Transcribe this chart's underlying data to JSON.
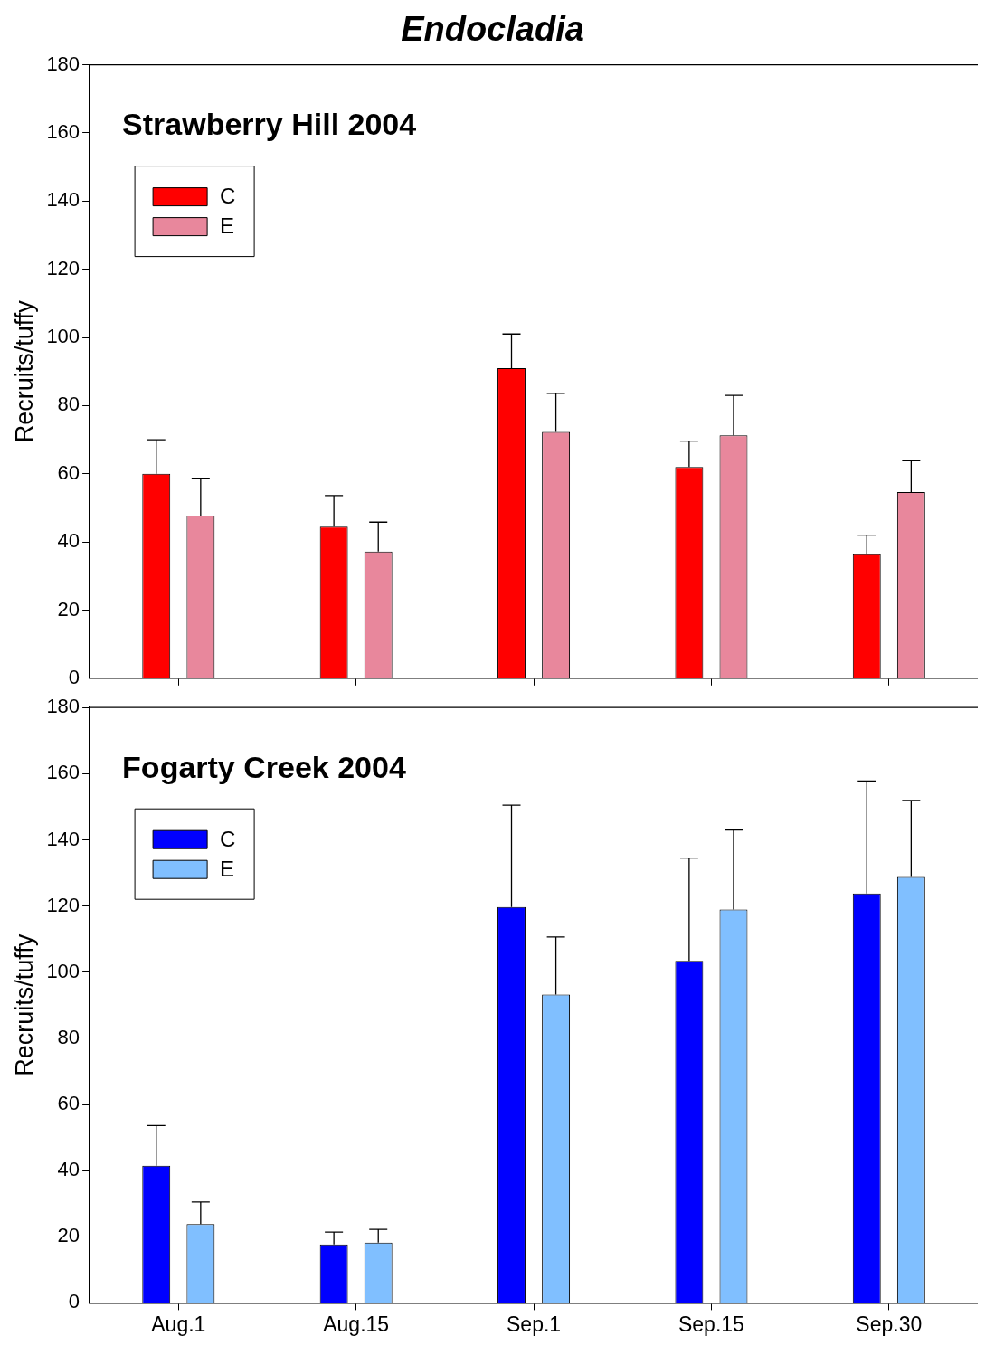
{
  "chart_data": [
    {
      "type": "bar",
      "title": "Endocladia",
      "subtitle": "Strawberry Hill 2004",
      "ylabel": "Recruits/tuffy",
      "categories": [
        null,
        null,
        null,
        null,
        null
      ],
      "tick_labels": "y",
      "ylim": [
        0,
        180
      ],
      "yticks": [
        0,
        20,
        40,
        60,
        80,
        100,
        120,
        140,
        160,
        180
      ],
      "grid": false,
      "legend": "top left",
      "series": [
        {
          "name": "C",
          "color": "#ff0000",
          "values": [
            60,
            44.5,
            91,
            62,
            36.4
          ],
          "errors": [
            [
              60,
              70
            ],
            [
              44.5,
              53.6
            ],
            [
              91,
              101
            ],
            [
              62,
              69.6
            ],
            [
              36.4,
              42
            ]
          ]
        },
        {
          "name": "E",
          "color": "#e8879c",
          "values": [
            47.7,
            37.2,
            72.3,
            71.3,
            54.6
          ],
          "errors": [
            [
              47.7,
              58.7
            ],
            [
              37.2,
              45.8
            ],
            [
              72.3,
              83.6
            ],
            [
              71.3,
              83
            ],
            [
              54.6,
              63.8
            ]
          ]
        }
      ]
    },
    {
      "type": "bar",
      "subtitle": "Fogarty Creek 2004",
      "ylabel": "Recruits/tuffy",
      "categories": [
        "Aug.1",
        "Aug.15",
        "Sep.1",
        "Sep.15",
        "Sep.30"
      ],
      "ylim": [
        0,
        180
      ],
      "yticks": [
        0,
        20,
        40,
        60,
        80,
        100,
        120,
        140,
        160,
        180
      ],
      "grid": false,
      "legend": "top left",
      "series": [
        {
          "name": "C",
          "color": "#0000ff",
          "values": [
            41.5,
            17.7,
            119.7,
            103.4,
            123.8
          ],
          "errors": [
            [
              41.5,
              53.6
            ],
            [
              17.7,
              21.4
            ],
            [
              119.7,
              150.5
            ],
            [
              103.4,
              134.5
            ],
            [
              123.8,
              157.8
            ]
          ]
        },
        {
          "name": "E",
          "color": "#80bfff",
          "values": [
            23.8,
            18.2,
            93.2,
            118.9,
            128.8
          ],
          "errors": [
            [
              23.8,
              30.5
            ],
            [
              18.2,
              22.2
            ],
            [
              93.2,
              110.6
            ],
            [
              118.9,
              143
            ],
            [
              128.8,
              151.9
            ]
          ]
        }
      ]
    }
  ]
}
